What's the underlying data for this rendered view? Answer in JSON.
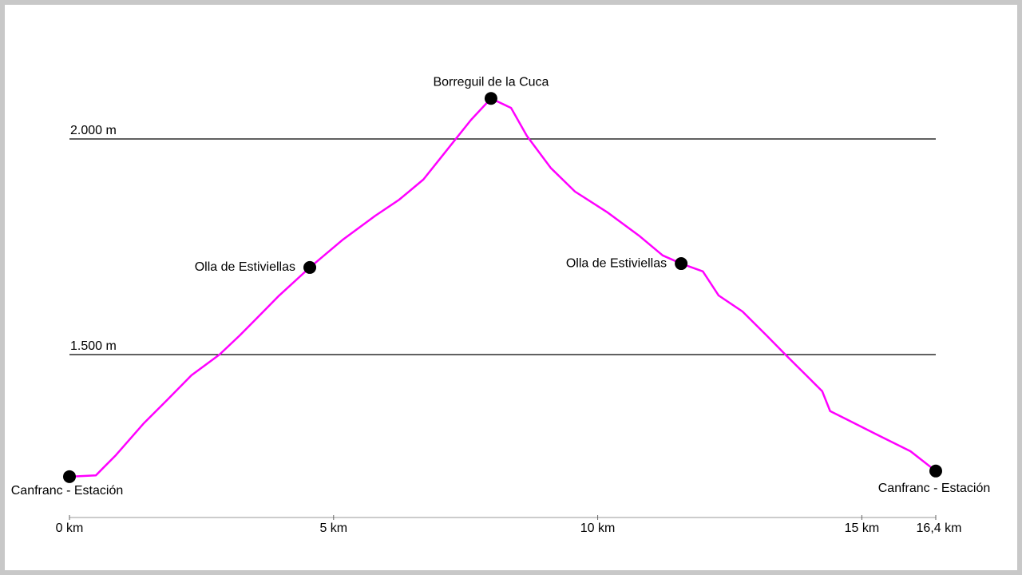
{
  "chart_data": {
    "type": "line",
    "x": [
      0,
      0.5,
      0.88,
      1.41,
      1.86,
      2.31,
      2.84,
      3.22,
      3.52,
      3.97,
      4.55,
      5.18,
      5.79,
      6.24,
      6.7,
      7.0,
      7.3,
      7.6,
      7.98,
      8.36,
      8.66,
      9.11,
      9.57,
      10.17,
      10.78,
      11.23,
      11.58,
      11.99,
      12.29,
      12.74,
      13.2,
      13.57,
      13.8,
      14.25,
      14.4,
      14.71,
      15.31,
      15.92,
      16.4
    ],
    "series": [
      {
        "color": "#ff00ff",
        "values": [
          1217,
          1220,
          1267,
          1341,
          1396,
          1452,
          1500,
          1544,
          1581,
          1637,
          1702,
          1767,
          1822,
          1859,
          1906,
          1952,
          1998,
          2044,
          2094,
          2072,
          2007,
          1933,
          1878,
          1831,
          1776,
          1730,
          1711,
          1693,
          1637,
          1600,
          1544,
          1498,
          1470,
          1415,
          1369,
          1350,
          1313,
          1276,
          1230
        ]
      }
    ],
    "xlim": [
      0,
      16.4
    ],
    "xticks": [
      {
        "value": 0,
        "label": "0 km"
      },
      {
        "value": 5,
        "label": "5 km"
      },
      {
        "value": 10,
        "label": "10 km"
      },
      {
        "value": 15,
        "label": "15 km"
      },
      {
        "value": 16.4,
        "label": "16,4 km"
      }
    ],
    "ylim": [
      1120,
      2150
    ],
    "yticks": [
      {
        "value": 1500,
        "label": "1.500 m"
      },
      {
        "value": 2000,
        "label": "2.000 m"
      }
    ],
    "grid": true,
    "marker_color": "#000000",
    "annotations": [
      {
        "label": "Canfranc - Estación",
        "x": 0,
        "y": 1217
      },
      {
        "label": "Olla de Estiviellas",
        "x": 4.55,
        "y": 1702
      },
      {
        "label": "Borreguil de la Cuca",
        "x": 7.98,
        "y": 2094
      },
      {
        "label": "Olla de Estiviellas",
        "x": 11.58,
        "y": 1711
      },
      {
        "label": "Canfranc - Estación",
        "x": 16.4,
        "y": 1230
      }
    ]
  }
}
